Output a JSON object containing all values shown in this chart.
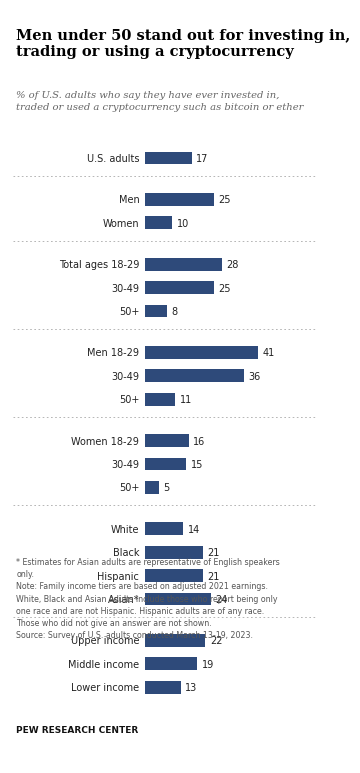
{
  "title": "Men under 50 stand out for investing in,\ntrading or using a cryptocurrency",
  "subtitle": "% of U.S. adults who say they have ever invested in,\ntraded or used a cryptocurrency such as bitcoin or ether",
  "bar_color": "#2e4a7a",
  "background_color": "#ffffff",
  "groups": [
    {
      "labels": [
        "U.S. adults"
      ],
      "values": [
        17
      ],
      "indent": [
        1
      ]
    },
    {
      "labels": [
        "Men",
        "Women"
      ],
      "values": [
        25,
        10
      ],
      "indent": [
        1,
        1
      ]
    },
    {
      "labels": [
        "Total ages 18-29",
        "30-49",
        "50+"
      ],
      "values": [
        28,
        25,
        8
      ],
      "indent": [
        0,
        1,
        1
      ]
    },
    {
      "labels": [
        "Men 18-29",
        "30-49",
        "50+"
      ],
      "values": [
        41,
        36,
        11
      ],
      "indent": [
        0,
        1,
        1
      ]
    },
    {
      "labels": [
        "Women 18-29",
        "30-49",
        "50+"
      ],
      "values": [
        16,
        15,
        5
      ],
      "indent": [
        0,
        1,
        1
      ]
    },
    {
      "labels": [
        "White",
        "Black",
        "Hispanic",
        "Asian*"
      ],
      "values": [
        14,
        21,
        21,
        24
      ],
      "indent": [
        1,
        1,
        1,
        1
      ]
    },
    {
      "labels": [
        "Upper income",
        "Middle income",
        "Lower income"
      ],
      "values": [
        22,
        19,
        13
      ],
      "indent": [
        0,
        0,
        0
      ]
    }
  ],
  "footnote": "* Estimates for Asian adults are representative of English speakers\nonly.\nNote: Family income tiers are based on adjusted 2021 earnings.\nWhite, Black and Asian adults include those who report being only\none race and are not Hispanic. Hispanic adults are of any race.\nThose who did not give an answer are not shown.\nSource: Survey of U.S. adults conducted March 13-19, 2023.",
  "source_label": "PEW RESEARCH CENTER",
  "max_value": 45
}
